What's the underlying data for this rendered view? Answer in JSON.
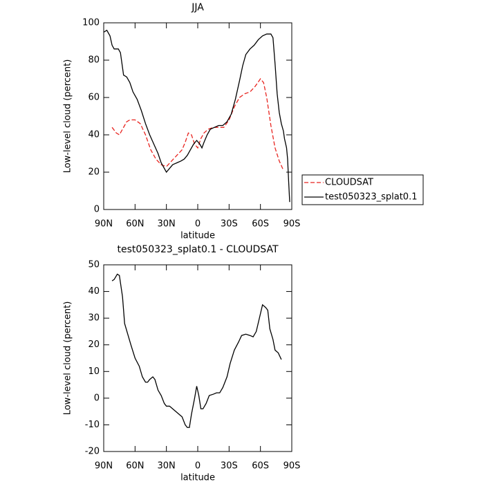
{
  "chart_data": [
    {
      "type": "line",
      "title": "JJA",
      "xlabel": "latitude",
      "ylabel": "Low-level cloud (percent)",
      "xlim": [
        90,
        -90
      ],
      "xticks": [
        {
          "value": 90,
          "label": "90N"
        },
        {
          "value": 60,
          "label": "60N"
        },
        {
          "value": 30,
          "label": "30N"
        },
        0,
        {
          "value": -30,
          "label": "30S"
        },
        {
          "value": -60,
          "label": "60S"
        },
        {
          "value": -90,
          "label": "90S"
        }
      ],
      "ylim": [
        0,
        100
      ],
      "yticks": [
        0,
        20,
        40,
        60,
        80,
        100
      ],
      "legend": "outside-right",
      "series": [
        {
          "name": "CLOUDSAT",
          "color": "#e8231e",
          "dashed": true,
          "x": [
            82,
            78,
            75,
            72,
            68,
            65,
            60,
            55,
            50,
            45,
            40,
            35,
            30,
            25,
            20,
            15,
            12,
            9,
            6,
            3,
            0,
            -3,
            -6,
            -10,
            -15,
            -20,
            -25,
            -30,
            -35,
            -40,
            -45,
            -50,
            -55,
            -60,
            -63,
            -66,
            -70,
            -74,
            -78,
            -82
          ],
          "values": [
            44,
            41,
            40,
            43,
            47,
            48,
            48,
            46,
            40,
            32,
            27,
            24,
            23,
            26,
            29,
            32,
            36,
            41,
            40,
            35,
            33,
            38,
            41,
            43,
            44,
            44,
            44,
            48,
            55,
            60,
            62,
            63,
            66,
            70,
            68,
            60,
            45,
            33,
            26,
            21
          ]
        },
        {
          "name": "test050323_splat0.1",
          "color": "#000000",
          "dashed": false,
          "x": [
            90,
            87,
            84,
            82,
            80,
            76,
            74,
            71,
            68,
            65,
            62,
            58,
            54,
            50,
            46,
            42,
            38,
            35,
            32,
            30,
            27,
            24,
            20,
            16,
            13,
            10,
            7,
            4,
            1,
            -2,
            -4,
            -6,
            -9,
            -12,
            -16,
            -20,
            -24,
            -28,
            -32,
            -36,
            -40,
            -43,
            -46,
            -50,
            -54,
            -58,
            -62,
            -66,
            -70,
            -72,
            -74,
            -76,
            -78,
            -80,
            -82,
            -83,
            -85,
            -86,
            -87,
            -88
          ],
          "values": [
            95,
            96,
            93,
            88,
            86,
            86,
            84,
            72,
            71,
            68,
            63,
            59,
            53,
            46,
            40,
            35,
            30,
            25,
            22,
            20,
            22,
            24,
            25,
            26,
            27,
            29,
            32,
            35,
            37,
            35,
            33,
            36,
            40,
            43,
            44,
            45,
            45,
            47,
            51,
            59,
            69,
            77,
            83,
            86,
            88,
            91,
            93,
            94,
            94,
            92,
            78,
            62,
            52,
            46,
            42,
            38,
            33,
            27,
            15,
            4
          ]
        }
      ]
    },
    {
      "type": "line",
      "title": "test050323_splat0.1 - CLOUDSAT",
      "xlabel": "latitude",
      "ylabel": "Low-level cloud (percent)",
      "xlim": [
        90,
        -90
      ],
      "xticks": [
        {
          "value": 90,
          "label": "90N"
        },
        {
          "value": 60,
          "label": "60N"
        },
        {
          "value": 30,
          "label": "30N"
        },
        0,
        {
          "value": -30,
          "label": "30S"
        },
        {
          "value": -60,
          "label": "60S"
        },
        {
          "value": -90,
          "label": "90S"
        }
      ],
      "ylim": [
        -20,
        50
      ],
      "yticks": [
        -20,
        -10,
        0,
        10,
        20,
        30,
        40,
        50
      ],
      "color": "#000000",
      "x": [
        82,
        80,
        77,
        75,
        72,
        70,
        67,
        64,
        60,
        56,
        53,
        50,
        48,
        46,
        43,
        41,
        38,
        35,
        32,
        30,
        27,
        24,
        21,
        18,
        15,
        12,
        10,
        8,
        6,
        3,
        1,
        -1,
        -3,
        -5,
        -8,
        -11,
        -15,
        -18,
        -21,
        -24,
        -28,
        -31,
        -35,
        -39,
        -42,
        -46,
        -50,
        -53,
        -56,
        -59,
        -62,
        -65,
        -67,
        -69,
        -72,
        -74,
        -77,
        -80
      ],
      "values": [
        44,
        44.5,
        46.5,
        46,
        38,
        28,
        24,
        20,
        15,
        12,
        8,
        6,
        6,
        7,
        8,
        7,
        3,
        1,
        -2,
        -3,
        -3,
        -4,
        -5,
        -6,
        -7,
        -10,
        -11,
        -11,
        -6,
        0,
        4.5,
        1,
        -4,
        -4,
        -2,
        1,
        1.5,
        2,
        2,
        4,
        8,
        13,
        18,
        21,
        23.5,
        24,
        23.5,
        23,
        25,
        30,
        35,
        34,
        33,
        26,
        22,
        18,
        17,
        14.5
      ]
    }
  ]
}
